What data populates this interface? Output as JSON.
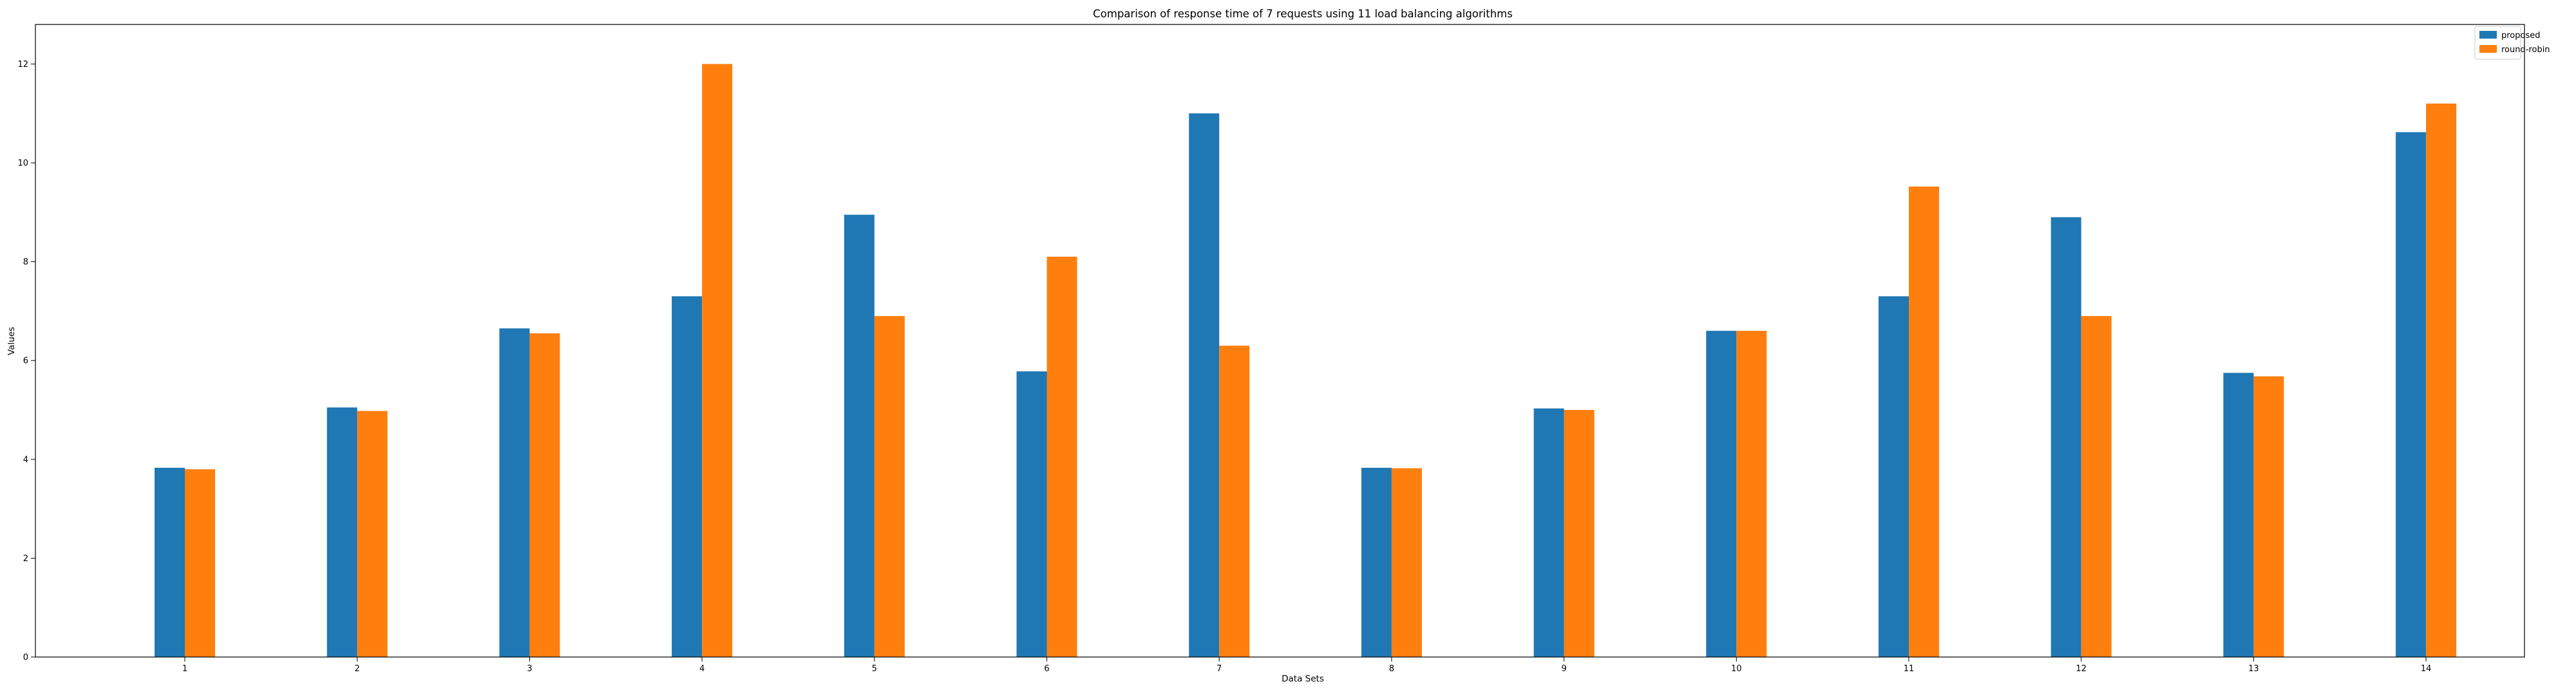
{
  "chart_data": {
    "type": "bar",
    "title": "Comparison of response time of 7 requests using 11 load balancing algorithms",
    "xlabel": "Data Sets",
    "ylabel": "Values",
    "categories": [
      "1",
      "2",
      "3",
      "4",
      "5",
      "6",
      "7",
      "8",
      "9",
      "10",
      "11",
      "12",
      "13",
      "14"
    ],
    "series": [
      {
        "name": "proposed",
        "color": "#1f77b4",
        "values": [
          3.83,
          5.05,
          6.65,
          7.3,
          8.95,
          5.78,
          11.0,
          3.83,
          5.03,
          6.6,
          7.3,
          8.9,
          5.75,
          10.62
        ]
      },
      {
        "name": "round-robin",
        "color": "#ff7f0e",
        "values": [
          3.8,
          4.98,
          6.55,
          12.0,
          6.9,
          8.1,
          6.3,
          3.82,
          5.0,
          6.6,
          9.52,
          6.9,
          5.68,
          11.2
        ]
      }
    ],
    "ylim": [
      0,
      12.8
    ],
    "yticks": [
      "0",
      "2",
      "4",
      "6",
      "8",
      "10",
      "12"
    ],
    "grid": false,
    "legend_position": "upper right"
  }
}
